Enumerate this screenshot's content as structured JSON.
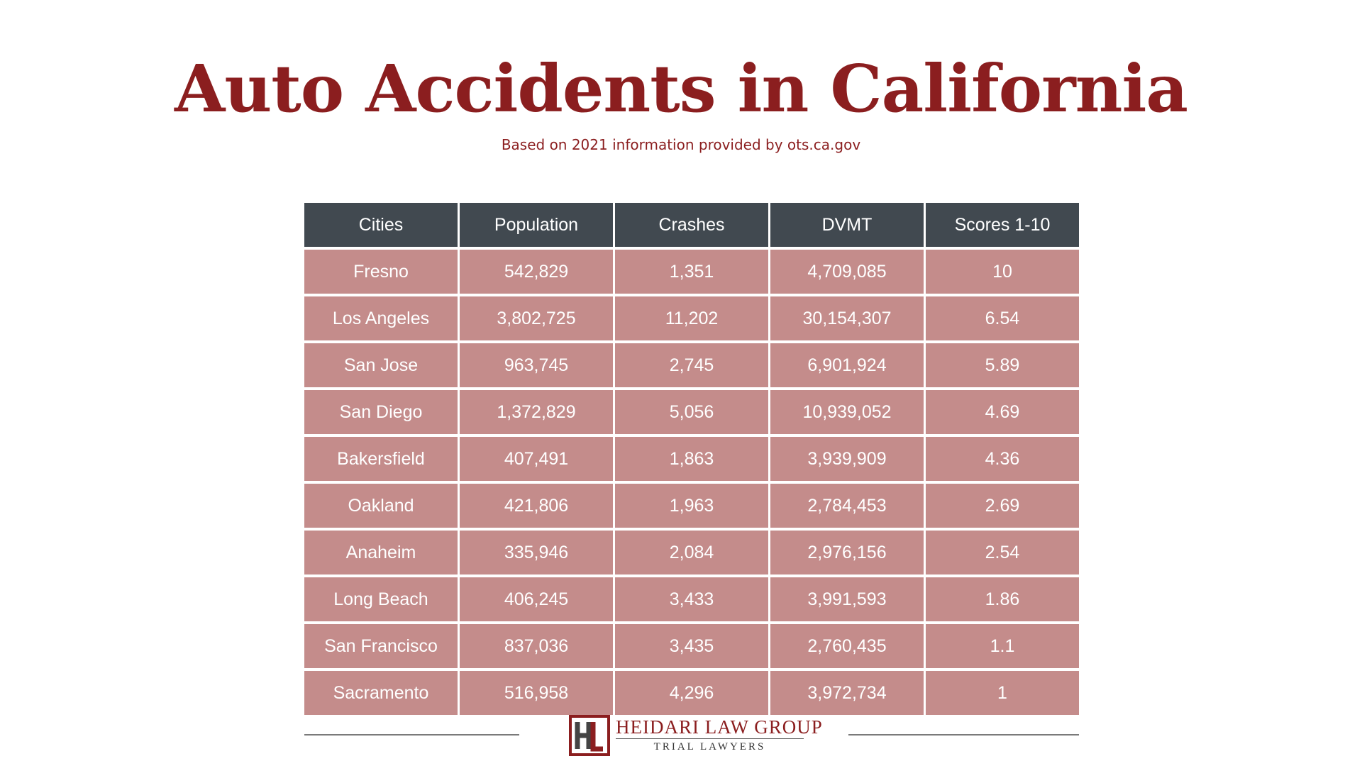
{
  "title": "Auto Accidents in California",
  "subtitle": "Based on 2021 information provided by ots.ca.gov",
  "chart_data": {
    "type": "table",
    "columns": [
      "Cities",
      "Population",
      "Crashes",
      "DVMT",
      "Scores 1-10"
    ],
    "rows": [
      [
        "Fresno",
        "542,829",
        "1,351",
        "4,709,085",
        "10"
      ],
      [
        "Los Angeles",
        "3,802,725",
        "11,202",
        "30,154,307",
        "6.54"
      ],
      [
        "San Jose",
        "963,745",
        "2,745",
        "6,901,924",
        "5.89"
      ],
      [
        "San Diego",
        "1,372,829",
        "5,056",
        "10,939,052",
        "4.69"
      ],
      [
        "Bakersfield",
        "407,491",
        "1,863",
        "3,939,909",
        "4.36"
      ],
      [
        "Oakland",
        "421,806",
        "1,963",
        "2,784,453",
        "2.69"
      ],
      [
        "Anaheim",
        "335,946",
        "2,084",
        "2,976,156",
        "2.54"
      ],
      [
        "Long Beach",
        "406,245",
        "3,433",
        "3,991,593",
        "1.86"
      ],
      [
        "San Francisco",
        "837,036",
        "3,435",
        "2,760,435",
        "1.1"
      ],
      [
        "Sacramento",
        "516,958",
        "4,296",
        "3,972,734",
        "1"
      ]
    ]
  },
  "footer": {
    "brand_name": "HEIDARI LAW GROUP",
    "tagline": "TRIAL LAWYERS",
    "logo_icon": "hlg-monogram-logo-icon"
  },
  "colors": {
    "accent": "#8b1e1f",
    "header_bg": "#414950",
    "row_bg": "#c48c8b"
  }
}
